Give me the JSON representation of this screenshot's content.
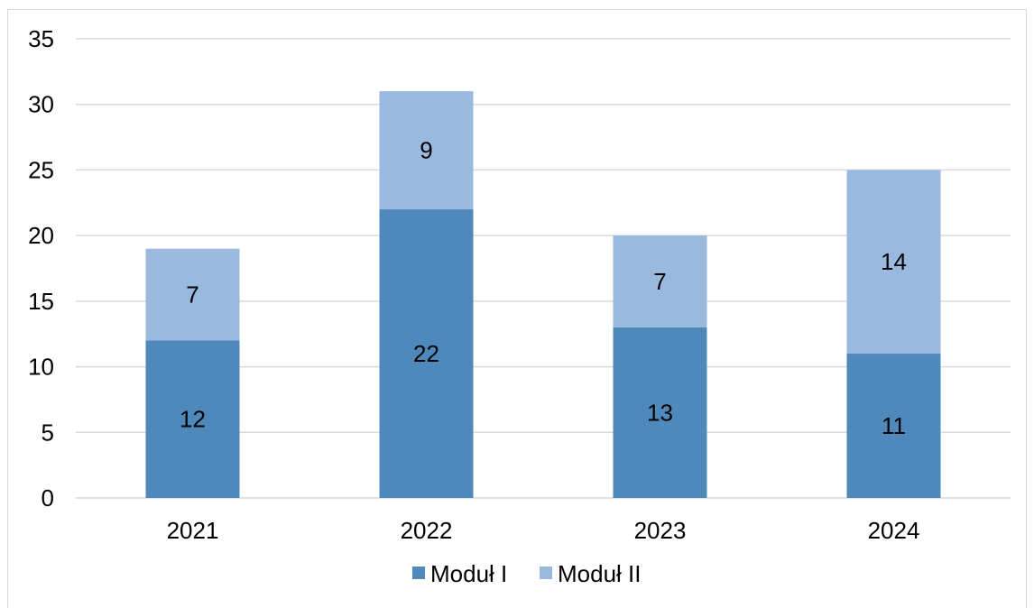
{
  "chart_data": {
    "type": "bar",
    "stacked": true,
    "categories": [
      "2021",
      "2022",
      "2023",
      "2024"
    ],
    "series": [
      {
        "name": "Moduł I",
        "values": [
          12,
          22,
          13,
          11
        ],
        "color": "#4f88bb"
      },
      {
        "name": "Moduł II",
        "values": [
          7,
          9,
          7,
          14
        ],
        "color": "#99b9de"
      }
    ],
    "title": "",
    "xlabel": "",
    "ylabel": "",
    "ylim": [
      0,
      35
    ],
    "yticks": [
      "0",
      "5",
      "10",
      "15",
      "20",
      "25",
      "30",
      "35"
    ],
    "grid": true,
    "gridline_color": "#d9d9d9",
    "legend_placement": "bottom"
  }
}
